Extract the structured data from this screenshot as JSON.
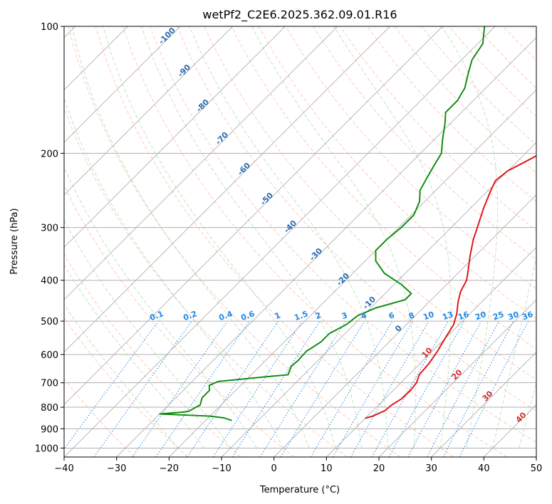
{
  "chart_data": {
    "type": "skew-t log-p sounding",
    "title": "wetPf2_C2E6.2025.362.09.01.R16",
    "xlabel": "Temperature (°C)",
    "ylabel": "Pressure (hPa)",
    "xlim": [
      -40,
      50
    ],
    "ylim_pressure": [
      1050,
      100
    ],
    "log_pressure_axis": true,
    "grid": true,
    "x_ticks": [
      "−40",
      "−30",
      "−20",
      "−10",
      "0",
      "10",
      "20",
      "30",
      "40",
      "50"
    ],
    "y_ticks": [
      "100",
      "200",
      "300",
      "400",
      "500",
      "600",
      "700",
      "800",
      "900",
      "1000"
    ],
    "series": [
      {
        "role": "temperature",
        "color": "#e01010",
        "points": [
          {
            "p": 850,
            "t": 10.0
          },
          {
            "p": 840,
            "t": 11.0
          },
          {
            "p": 815,
            "t": 12.3
          },
          {
            "p": 790,
            "t": 12.5
          },
          {
            "p": 765,
            "t": 13.2
          },
          {
            "p": 730,
            "t": 13.3
          },
          {
            "p": 700,
            "t": 13.0
          },
          {
            "p": 670,
            "t": 12.0
          },
          {
            "p": 630,
            "t": 11.7
          },
          {
            "p": 590,
            "t": 11.0
          },
          {
            "p": 550,
            "t": 10.0
          },
          {
            "p": 510,
            "t": 9.0
          },
          {
            "p": 480,
            "t": 7.5
          },
          {
            "p": 450,
            "t": 5.5
          },
          {
            "p": 425,
            "t": 4.0
          },
          {
            "p": 400,
            "t": 3.0
          },
          {
            "p": 380,
            "t": 1.5
          },
          {
            "p": 350,
            "t": -1.0
          },
          {
            "p": 320,
            "t": -3.5
          },
          {
            "p": 300,
            "t": -5.0
          },
          {
            "p": 270,
            "t": -7.5
          },
          {
            "p": 245,
            "t": -9.5
          },
          {
            "p": 232,
            "t": -10.5
          },
          {
            "p": 220,
            "t": -10.0
          },
          {
            "p": 210,
            "t": -8.5
          },
          {
            "p": 200,
            "t": -7.0
          },
          {
            "p": 185,
            "t": -5.5
          },
          {
            "p": 170,
            "t": -4.5
          },
          {
            "p": 155,
            "t": -4.0
          },
          {
            "p": 140,
            "t": -4.0
          },
          {
            "p": 128,
            "t": -4.5
          },
          {
            "p": 115,
            "t": -5.5
          },
          {
            "p": 100,
            "t": -7.0
          }
        ]
      },
      {
        "role": "dewpoint",
        "color": "#0a8a0a",
        "points": [
          {
            "p": 860,
            "t": -15.0
          },
          {
            "p": 848,
            "t": -17.0
          },
          {
            "p": 840,
            "t": -20.0
          },
          {
            "p": 830,
            "t": -30.0
          },
          {
            "p": 822,
            "t": -26.0
          },
          {
            "p": 818,
            "t": -25.0
          },
          {
            "p": 790,
            "t": -24.0
          },
          {
            "p": 760,
            "t": -25.0
          },
          {
            "p": 730,
            "t": -25.0
          },
          {
            "p": 710,
            "t": -26.0
          },
          {
            "p": 695,
            "t": -25.0
          },
          {
            "p": 680,
            "t": -18.0
          },
          {
            "p": 670,
            "t": -13.0
          },
          {
            "p": 640,
            "t": -14.0
          },
          {
            "p": 620,
            "t": -13.8
          },
          {
            "p": 590,
            "t": -14.0
          },
          {
            "p": 560,
            "t": -13.0
          },
          {
            "p": 535,
            "t": -13.0
          },
          {
            "p": 510,
            "t": -11.5
          },
          {
            "p": 485,
            "t": -11.0
          },
          {
            "p": 465,
            "t": -9.0
          },
          {
            "p": 445,
            "t": -5.0
          },
          {
            "p": 430,
            "t": -5.0
          },
          {
            "p": 410,
            "t": -8.5
          },
          {
            "p": 385,
            "t": -14.0
          },
          {
            "p": 360,
            "t": -18.0
          },
          {
            "p": 340,
            "t": -20.0
          },
          {
            "p": 320,
            "t": -20.0
          },
          {
            "p": 300,
            "t": -19.5
          },
          {
            "p": 280,
            "t": -19.5
          },
          {
            "p": 260,
            "t": -21.0
          },
          {
            "p": 245,
            "t": -23.0
          },
          {
            "p": 230,
            "t": -24.0
          },
          {
            "p": 215,
            "t": -25.0
          },
          {
            "p": 200,
            "t": -26.0
          },
          {
            "p": 185,
            "t": -28.5
          },
          {
            "p": 170,
            "t": -31.0
          },
          {
            "p": 160,
            "t": -33.0
          },
          {
            "p": 150,
            "t": -33.0
          },
          {
            "p": 140,
            "t": -34.0
          },
          {
            "p": 130,
            "t": -36.0
          },
          {
            "p": 120,
            "t": -38.0
          },
          {
            "p": 110,
            "t": -39.0
          },
          {
            "p": 100,
            "t": -42.0
          }
        ]
      }
    ],
    "dry_adiabat_labels": [
      "-100",
      "-90",
      "-80",
      "-70",
      "-60",
      "-50",
      "-40",
      "-30",
      "-20",
      "-10",
      "0"
    ],
    "moist_adiabat_labels": [
      "10",
      "20",
      "30",
      "40"
    ],
    "mixing_ratio_labels": [
      "0.1",
      "0.2",
      "0.4",
      "0.6",
      "1",
      "1.5",
      "2",
      "3",
      "4",
      "6",
      "8",
      "10",
      "13",
      "16",
      "20",
      "25",
      "30",
      "36"
    ]
  }
}
